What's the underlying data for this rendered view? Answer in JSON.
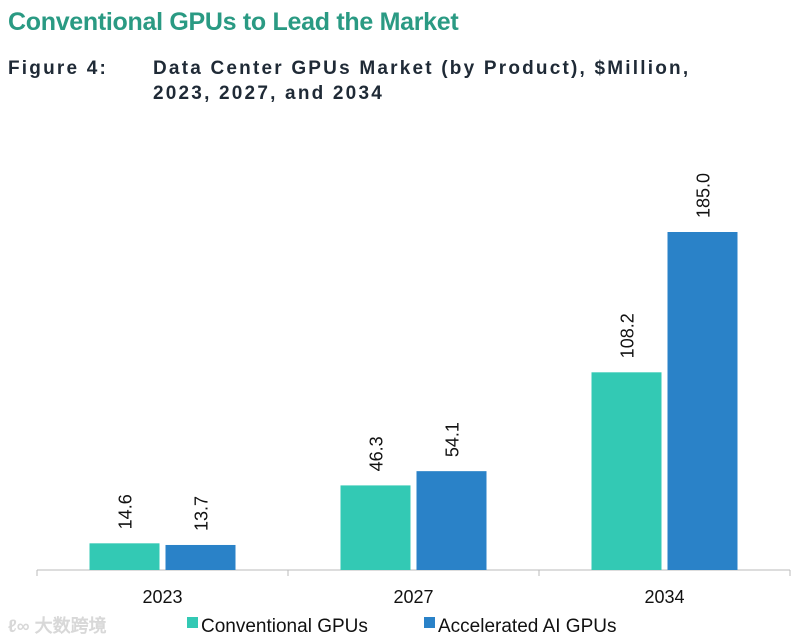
{
  "heading": "Conventional GPUs to Lead the Market",
  "figure_label": "Figure 4:",
  "figure_title_line1": "Data Center GPUs Market (by Product), $Million,",
  "figure_title_line2": "2023, 2027, and 2034",
  "watermark": "大数跨境",
  "chart_data": {
    "type": "bar",
    "title": "Data Center GPUs Market (by Product), $Million, 2023, 2027, and 2034",
    "categories": [
      "2023",
      "2027",
      "2034"
    ],
    "series": [
      {
        "name": "Conventional GPUs",
        "color": "#33c9b4",
        "values": [
          14.6,
          46.3,
          108.2
        ],
        "labels": [
          "14.6",
          "46.3",
          "108.2"
        ]
      },
      {
        "name": "Accelerated AI GPUs",
        "color": "#2a82c8",
        "values": [
          13.7,
          54.1,
          185.0
        ],
        "labels": [
          "13.7",
          "54.1",
          "185.0"
        ]
      }
    ],
    "ylim": [
      0,
      200
    ],
    "grid": false,
    "legend": "bottom"
  }
}
